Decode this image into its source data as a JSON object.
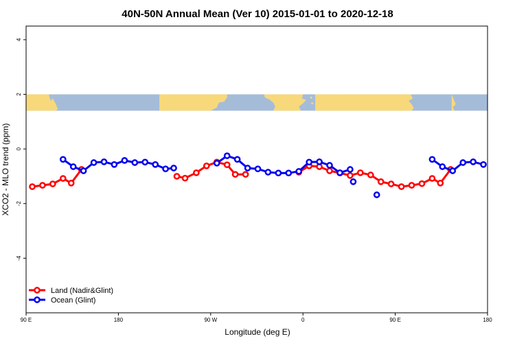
{
  "chart_data": {
    "type": "line",
    "title": "40N-50N Annual Mean (Ver 10)   2015-01-01 to 2020-12-18",
    "xlabel": "Longitude (deg E)",
    "ylabel": "XCO2 - MLO trend (ppm)",
    "x_ticks": [
      {
        "value": 90,
        "label": "90 E"
      },
      {
        "value": 180,
        "label": "180"
      },
      {
        "value": 270,
        "label": "90 W"
      },
      {
        "value": 360,
        "label": "0"
      },
      {
        "value": 450,
        "label": "90 E"
      },
      {
        "value": 540,
        "label": "180"
      }
    ],
    "y_ticks": [
      4,
      2,
      0,
      -2,
      -4
    ],
    "xlim": [
      90,
      540
    ],
    "ylim": [
      -6,
      4.5
    ],
    "grid": false,
    "legend_position": "bottom-left",
    "map_band": {
      "y_range": [
        1.4,
        2.0
      ],
      "land_color": "#f7d97b",
      "ocean_color": "#a5bcd9"
    },
    "series": [
      {
        "name": "Land (Nadir&Glint)",
        "color": "#ff0000",
        "segments": [
          [
            [
              96,
              -1.38
            ],
            [
              106,
              -1.33
            ],
            [
              116,
              -1.28
            ],
            [
              126,
              -1.08
            ],
            [
              134,
              -1.25
            ],
            [
              144,
              -0.75
            ]
          ],
          [
            [
              237,
              -1.0
            ],
            [
              245,
              -1.07
            ],
            [
              256,
              -0.87
            ],
            [
              266,
              -0.62
            ],
            [
              276,
              -0.48
            ],
            [
              286,
              -0.58
            ],
            [
              294,
              -0.93
            ],
            [
              304,
              -0.93
            ]
          ],
          [
            [
              356,
              -0.85
            ],
            [
              366,
              -0.62
            ],
            [
              376,
              -0.65
            ],
            [
              386,
              -0.8
            ],
            [
              396,
              -0.88
            ],
            [
              406,
              -0.97
            ],
            [
              416,
              -0.87
            ],
            [
              426,
              -0.95
            ],
            [
              436,
              -1.2
            ],
            [
              446,
              -1.28
            ],
            [
              456,
              -1.38
            ],
            [
              466,
              -1.33
            ],
            [
              476,
              -1.27
            ],
            [
              486,
              -1.08
            ],
            [
              494,
              -1.25
            ],
            [
              504,
              -0.75
            ]
          ]
        ]
      },
      {
        "name": "Ocean (Glint)",
        "color": "#0000ee",
        "segments": [
          [
            [
              126,
              -0.38
            ],
            [
              136,
              -0.65
            ],
            [
              146,
              -0.8
            ],
            [
              156,
              -0.5
            ],
            [
              166,
              -0.47
            ],
            [
              176,
              -0.57
            ],
            [
              186,
              -0.42
            ],
            [
              196,
              -0.5
            ],
            [
              206,
              -0.48
            ],
            [
              216,
              -0.57
            ],
            [
              226,
              -0.73
            ],
            [
              234,
              -0.7
            ]
          ],
          [
            [
              276,
              -0.52
            ],
            [
              286,
              -0.25
            ],
            [
              296,
              -0.38
            ],
            [
              306,
              -0.7
            ],
            [
              316,
              -0.73
            ],
            [
              326,
              -0.85
            ],
            [
              336,
              -0.88
            ],
            [
              346,
              -0.88
            ],
            [
              356,
              -0.82
            ],
            [
              366,
              -0.48
            ],
            [
              376,
              -0.47
            ],
            [
              386,
              -0.6
            ],
            [
              396,
              -0.87
            ],
            [
              406,
              -0.75
            ]
          ],
          [
            [
              409,
              -1.2
            ]
          ],
          [
            [
              432,
              -1.68
            ]
          ],
          [
            [
              486,
              -0.38
            ],
            [
              496,
              -0.65
            ],
            [
              506,
              -0.8
            ],
            [
              516,
              -0.5
            ],
            [
              526,
              -0.47
            ],
            [
              536,
              -0.57
            ]
          ]
        ]
      }
    ]
  }
}
